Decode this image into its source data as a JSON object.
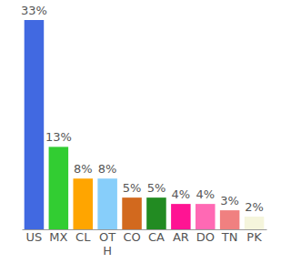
{
  "chart_data": {
    "type": "bar",
    "categories": [
      "US",
      "MX",
      "CL",
      "OTH",
      "CO",
      "CA",
      "AR",
      "DO",
      "TN",
      "PK"
    ],
    "values": [
      33,
      13,
      8,
      8,
      5,
      5,
      4,
      4,
      3,
      2
    ],
    "value_labels": [
      "33%",
      "13%",
      "8%",
      "8%",
      "5%",
      "5%",
      "4%",
      "4%",
      "3%",
      "2%"
    ],
    "colors": [
      "#4169e1",
      "#32cd32",
      "#ffa500",
      "#87cefa",
      "#d2691e",
      "#228b22",
      "#ff1493",
      "#ff69b4",
      "#f08080",
      "#f5f5dc"
    ],
    "data_labels": true,
    "tick_labels": "x"
  }
}
